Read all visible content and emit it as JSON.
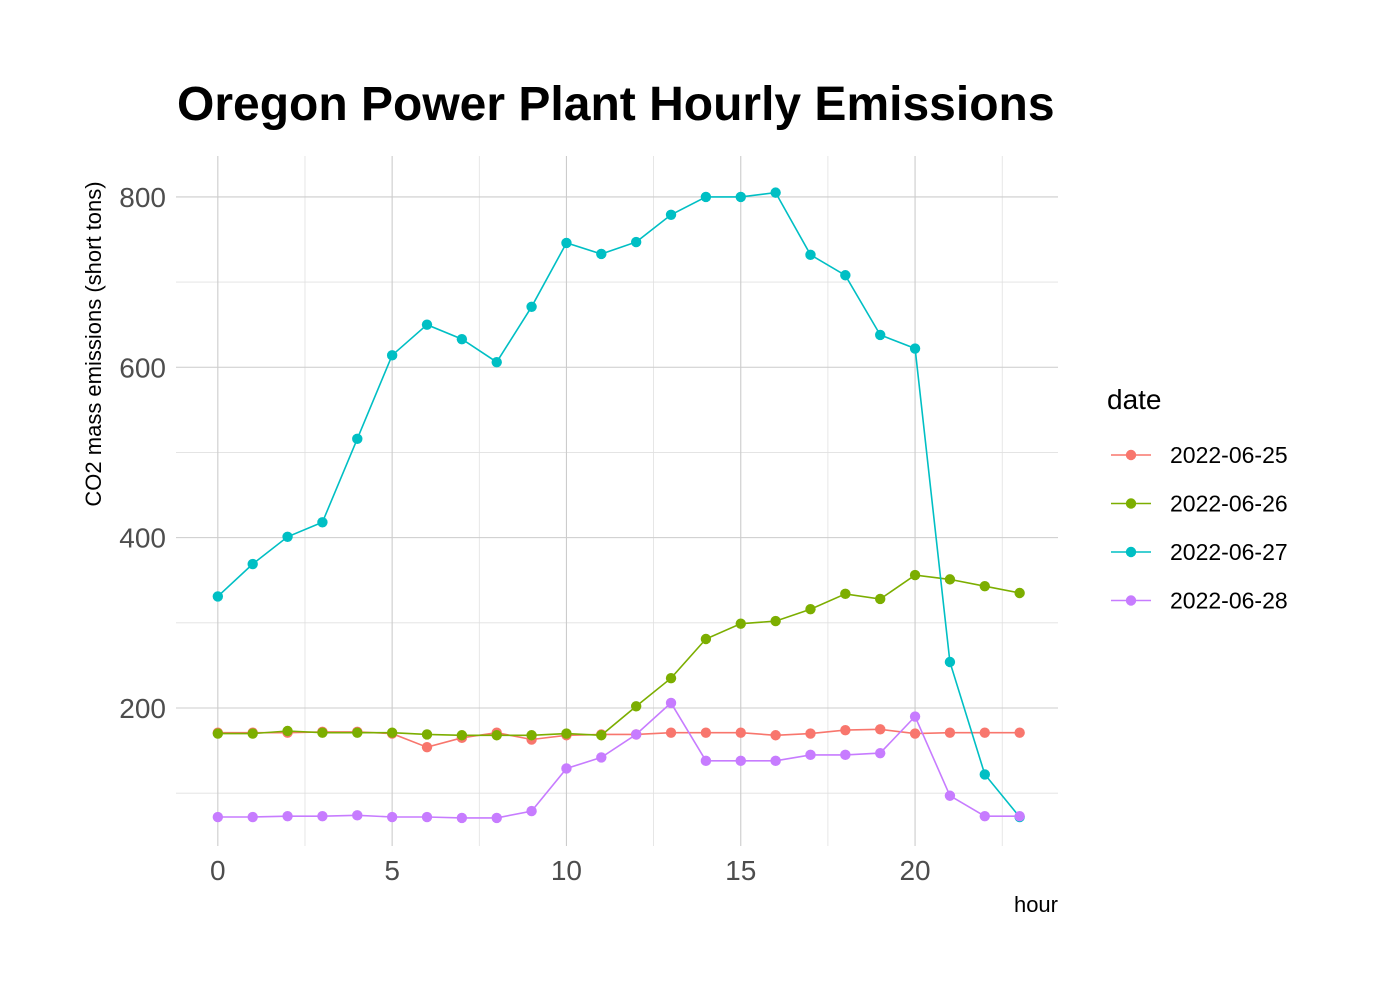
{
  "chart_data": {
    "type": "line",
    "title": "Oregon Power Plant Hourly Emissions",
    "xlabel": "hour",
    "ylabel": "CO2 mass emissions (short tons)",
    "xlim": [
      -1.2,
      24.1
    ],
    "ylim": [
      38,
      848
    ],
    "x_ticks": [
      0,
      5,
      10,
      15,
      20
    ],
    "y_ticks": [
      200,
      400,
      600,
      800
    ],
    "grid": true,
    "legend": {
      "title": "date",
      "position": "right"
    },
    "x": [
      0,
      1,
      2,
      3,
      4,
      5,
      6,
      7,
      8,
      9,
      10,
      11,
      12,
      13,
      14,
      15,
      16,
      17,
      18,
      19,
      20,
      21,
      22,
      23
    ],
    "series": [
      {
        "name": "2022-06-25",
        "color": "#F8766D",
        "values": [
          171,
          171,
          171,
          172,
          172,
          170,
          154,
          165,
          171,
          163,
          168,
          169,
          169,
          171,
          171,
          171,
          168,
          170,
          174,
          175,
          170,
          171,
          171,
          171
        ]
      },
      {
        "name": "2022-06-26",
        "color": "#7CAE00",
        "values": [
          170,
          170,
          173,
          171,
          171,
          171,
          169,
          168,
          168,
          168,
          170,
          168,
          202,
          235,
          281,
          299,
          302,
          316,
          334,
          328,
          356,
          351,
          343,
          335
        ]
      },
      {
        "name": "2022-06-27",
        "color": "#00BFC4",
        "values": [
          331,
          369,
          401,
          418,
          516,
          614,
          650,
          633,
          606,
          671,
          746,
          733,
          747,
          779,
          800,
          800,
          805,
          732,
          708,
          638,
          622,
          254,
          122,
          72
        ]
      },
      {
        "name": "2022-06-28",
        "color": "#C77CFF",
        "values": [
          72,
          72,
          73,
          73,
          74,
          72,
          72,
          71,
          71,
          79,
          129,
          142,
          169,
          206,
          138,
          138,
          138,
          145,
          145,
          147,
          190,
          97,
          73,
          73
        ]
      }
    ]
  }
}
